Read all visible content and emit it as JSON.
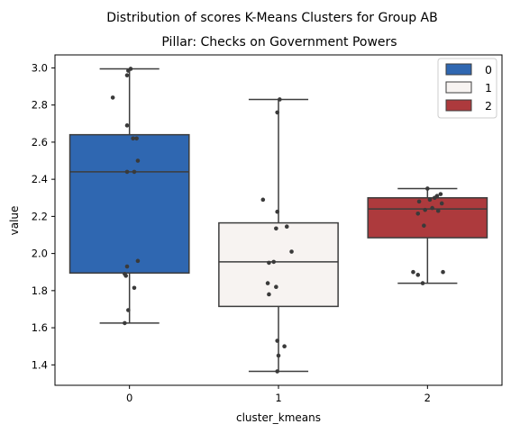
{
  "chart_data": {
    "type": "box",
    "title": "Distribution of scores K-Means Clusters for Group AB",
    "subtitle": "Pillar: Checks on Government Powers",
    "xlabel": "cluster_kmeans",
    "ylabel": "value",
    "ylim": [
      1.29,
      3.07
    ],
    "yticks": [
      "1.4",
      "1.6",
      "1.8",
      "2.0",
      "2.2",
      "2.4",
      "2.6",
      "2.8",
      "3.0"
    ],
    "categories": [
      "0",
      "1",
      "2"
    ],
    "grid": false,
    "legend": {
      "placement": "top-right",
      "entries": [
        {
          "label": "0",
          "color": "#2f67b1"
        },
        {
          "label": "1",
          "color": "#f7f3f1"
        },
        {
          "label": "2",
          "color": "#ad3a3d"
        }
      ]
    },
    "series": [
      {
        "category": "0",
        "color": "#2f67b1",
        "min": 1.625,
        "q1": 1.895,
        "median": 2.44,
        "q3": 2.64,
        "max": 2.995,
        "points": [
          [
            0.01,
            2.995
          ],
          [
            -0.01,
            2.985
          ],
          [
            -0.02,
            2.96
          ],
          [
            -0.14,
            2.84
          ],
          [
            -0.02,
            2.69
          ],
          [
            0.03,
            2.62
          ],
          [
            0.06,
            2.62
          ],
          [
            0.07,
            2.5
          ],
          [
            -0.02,
            2.44
          ],
          [
            0.04,
            2.44
          ],
          [
            0.07,
            1.96
          ],
          [
            -0.02,
            1.93
          ],
          [
            -0.04,
            1.89
          ],
          [
            -0.03,
            1.88
          ],
          [
            0.04,
            1.815
          ],
          [
            -0.01,
            1.695
          ],
          [
            -0.04,
            1.625
          ]
        ]
      },
      {
        "category": "1",
        "color": "#f7f3f1",
        "min": 1.365,
        "q1": 1.715,
        "median": 1.955,
        "q3": 2.165,
        "max": 2.83,
        "points": [
          [
            0.01,
            2.83
          ],
          [
            -0.01,
            2.76
          ],
          [
            -0.13,
            2.29
          ],
          [
            -0.01,
            2.225
          ],
          [
            0.07,
            2.145
          ],
          [
            -0.02,
            2.135
          ],
          [
            0.11,
            2.01
          ],
          [
            -0.04,
            1.955
          ],
          [
            -0.08,
            1.95
          ],
          [
            -0.09,
            1.84
          ],
          [
            -0.02,
            1.82
          ],
          [
            -0.08,
            1.78
          ],
          [
            -0.01,
            1.53
          ],
          [
            0.05,
            1.5
          ],
          [
            0.0,
            1.45
          ],
          [
            -0.01,
            1.365
          ]
        ]
      },
      {
        "category": "2",
        "color": "#ad3a3d",
        "min": 1.84,
        "q1": 2.085,
        "median": 2.24,
        "q3": 2.3,
        "max": 2.35,
        "points": [
          [
            0.0,
            2.35
          ],
          [
            0.11,
            2.32
          ],
          [
            0.08,
            2.31
          ],
          [
            0.06,
            2.3
          ],
          [
            0.02,
            2.29
          ],
          [
            -0.07,
            2.28
          ],
          [
            0.12,
            2.27
          ],
          [
            0.04,
            2.245
          ],
          [
            -0.02,
            2.235
          ],
          [
            0.09,
            2.23
          ],
          [
            -0.03,
            2.15
          ],
          [
            -0.08,
            2.215
          ],
          [
            -0.12,
            1.9
          ],
          [
            -0.08,
            1.885
          ],
          [
            0.13,
            1.9
          ],
          [
            -0.04,
            1.84
          ]
        ]
      }
    ]
  }
}
